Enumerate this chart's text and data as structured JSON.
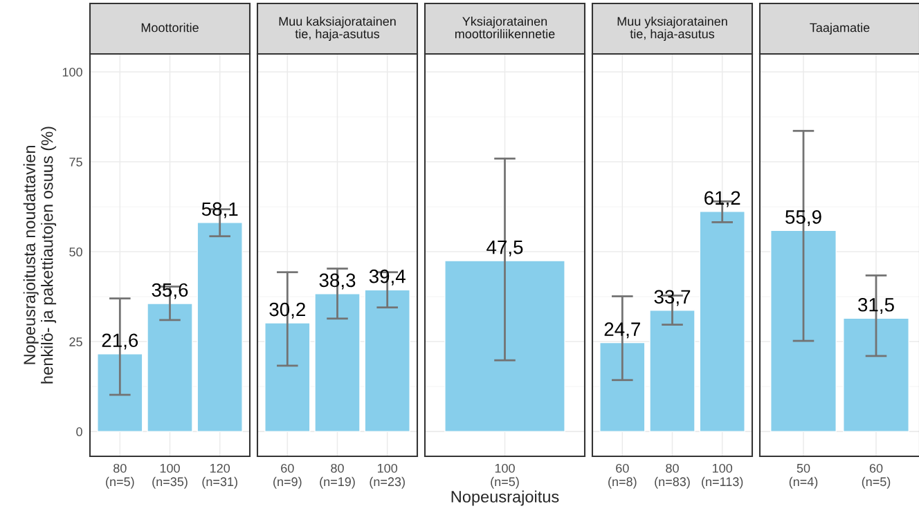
{
  "chart_data": [
    {
      "type": "bar",
      "title": "Moottoritie",
      "ylabel": "Nopeusrajoitusta noudattavien\nhenkilö- ja pakettiautojen osuus (%)",
      "categories": [
        "80\n(n=5)",
        "100\n(n=35)",
        "120\n(n=31)"
      ],
      "values": [
        21.6,
        35.6,
        58.1
      ],
      "value_labels": [
        "21,6",
        "35,6",
        "58,1"
      ],
      "errors": [
        [
          10.2,
          37.0
        ],
        [
          31.0,
          40.3
        ],
        [
          54.3,
          61.8
        ]
      ],
      "color": "#87ceeb",
      "ylim": [
        -6.9,
        105
      ],
      "yticks": [
        0,
        25,
        50,
        75,
        100
      ],
      "grid": true
    },
    {
      "type": "bar",
      "title": "Muu kaksiajoratainen\ntie, haja-asutus",
      "categories": [
        "60\n(n=9)",
        "80\n(n=19)",
        "100\n(n=23)"
      ],
      "values": [
        30.2,
        38.3,
        39.4
      ],
      "value_labels": [
        "30,2",
        "38,3",
        "39,4"
      ],
      "errors": [
        [
          18.3,
          44.3
        ],
        [
          31.4,
          45.3
        ],
        [
          34.5,
          44.3
        ]
      ],
      "color": "#87ceeb",
      "ylim": [
        -6.9,
        105
      ],
      "yticks": [
        0,
        25,
        50,
        75,
        100
      ],
      "grid": true,
      "tick_labels": "x"
    },
    {
      "type": "bar",
      "title": "Yksiajoratainen\nmoottoriliikennetie",
      "xlabel": "Nopeusrajoitus",
      "categories": [
        "100\n(n=5)"
      ],
      "values": [
        47.5
      ],
      "value_labels": [
        "47,5"
      ],
      "errors": [
        [
          19.8,
          75.9
        ]
      ],
      "color": "#87ceeb",
      "ylim": [
        -6.9,
        105
      ],
      "yticks": [
        0,
        25,
        50,
        75,
        100
      ],
      "grid": true,
      "tick_labels": "x"
    },
    {
      "type": "bar",
      "title": "Muu yksiajoratainen\ntie, haja-asutus",
      "categories": [
        "60\n(n=8)",
        "80\n(n=83)",
        "100\n(n=113)"
      ],
      "values": [
        24.7,
        33.7,
        61.2
      ],
      "value_labels": [
        "24,7",
        "33,7",
        "61,2"
      ],
      "errors": [
        [
          14.3,
          37.6
        ],
        [
          29.7,
          37.8
        ],
        [
          58.2,
          64.0
        ]
      ],
      "color": "#87ceeb",
      "ylim": [
        -6.9,
        105
      ],
      "yticks": [
        0,
        25,
        50,
        75,
        100
      ],
      "grid": true,
      "tick_labels": "x"
    },
    {
      "type": "bar",
      "title": "Taajamatie",
      "categories": [
        "50\n(n=4)",
        "60\n(n=5)"
      ],
      "values": [
        55.9,
        31.5
      ],
      "value_labels": [
        "55,9",
        "31,5"
      ],
      "errors": [
        [
          25.2,
          83.6
        ],
        [
          21.0,
          43.4
        ]
      ],
      "color": "#87ceeb",
      "ylim": [
        -6.9,
        105
      ],
      "yticks": [
        0,
        25,
        50,
        75,
        100
      ],
      "grid": true,
      "tick_labels": "x"
    }
  ]
}
